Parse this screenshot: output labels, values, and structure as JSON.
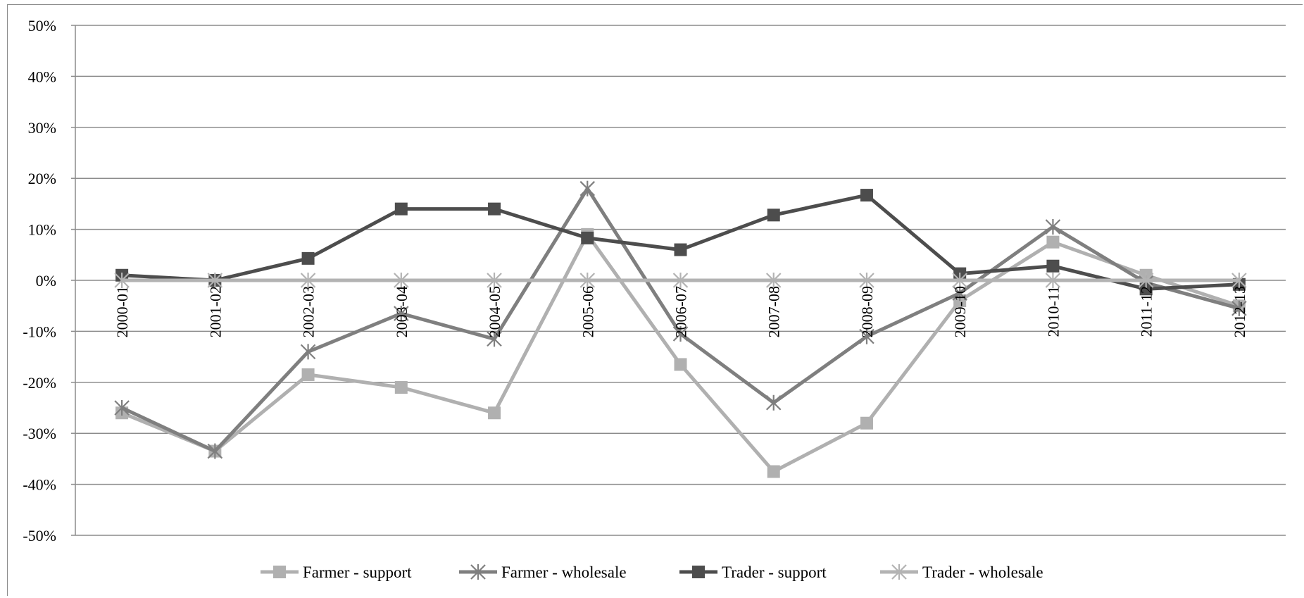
{
  "chart_data": {
    "type": "line",
    "title": "",
    "xlabel": "",
    "ylabel": "",
    "categories": [
      "2000-01",
      "2001-02",
      "2002-03",
      "2003-04",
      "2004-05",
      "2005-06",
      "2006-07",
      "2007-08",
      "2008-09",
      "2009-10",
      "2010-11",
      "2011-12",
      "2012-13"
    ],
    "ylim": [
      -50,
      50
    ],
    "y_ticks": [
      50,
      40,
      30,
      20,
      10,
      0,
      -10,
      -20,
      -30,
      -40,
      -50
    ],
    "y_tick_labels": [
      "50%",
      "40%",
      "30%",
      "20%",
      "10%",
      "0%",
      "-10%",
      "-20%",
      "-30%",
      "-40%",
      "-50%"
    ],
    "grid": true,
    "legend_position": "bottom",
    "series": [
      {
        "name": "Farmer - support",
        "marker": "square",
        "color": "#b0b0b0",
        "values": [
          -26,
          -33.5,
          -18.5,
          -21,
          -26,
          9,
          -16.5,
          -37.5,
          -28,
          -4,
          7.5,
          1,
          -5
        ]
      },
      {
        "name": "Farmer - wholesale",
        "marker": "star",
        "color": "#7f7f7f",
        "values": [
          -25,
          -33.5,
          -14,
          -6.5,
          -11.5,
          18,
          -10.5,
          -24,
          -11,
          -2.5,
          10.5,
          -0.5,
          -5.5
        ]
      },
      {
        "name": "Trader - support",
        "marker": "square",
        "color": "#4d4d4d",
        "values": [
          1,
          0,
          4.3,
          14,
          14,
          8.3,
          6,
          12.8,
          16.7,
          1.3,
          2.8,
          -1.7,
          -0.8
        ]
      },
      {
        "name": "Trader - wholesale",
        "marker": "star",
        "color": "#b3b3b3",
        "values": [
          0,
          0,
          0,
          0,
          0,
          0,
          0,
          0,
          0,
          0,
          0,
          0,
          0
        ]
      }
    ]
  }
}
